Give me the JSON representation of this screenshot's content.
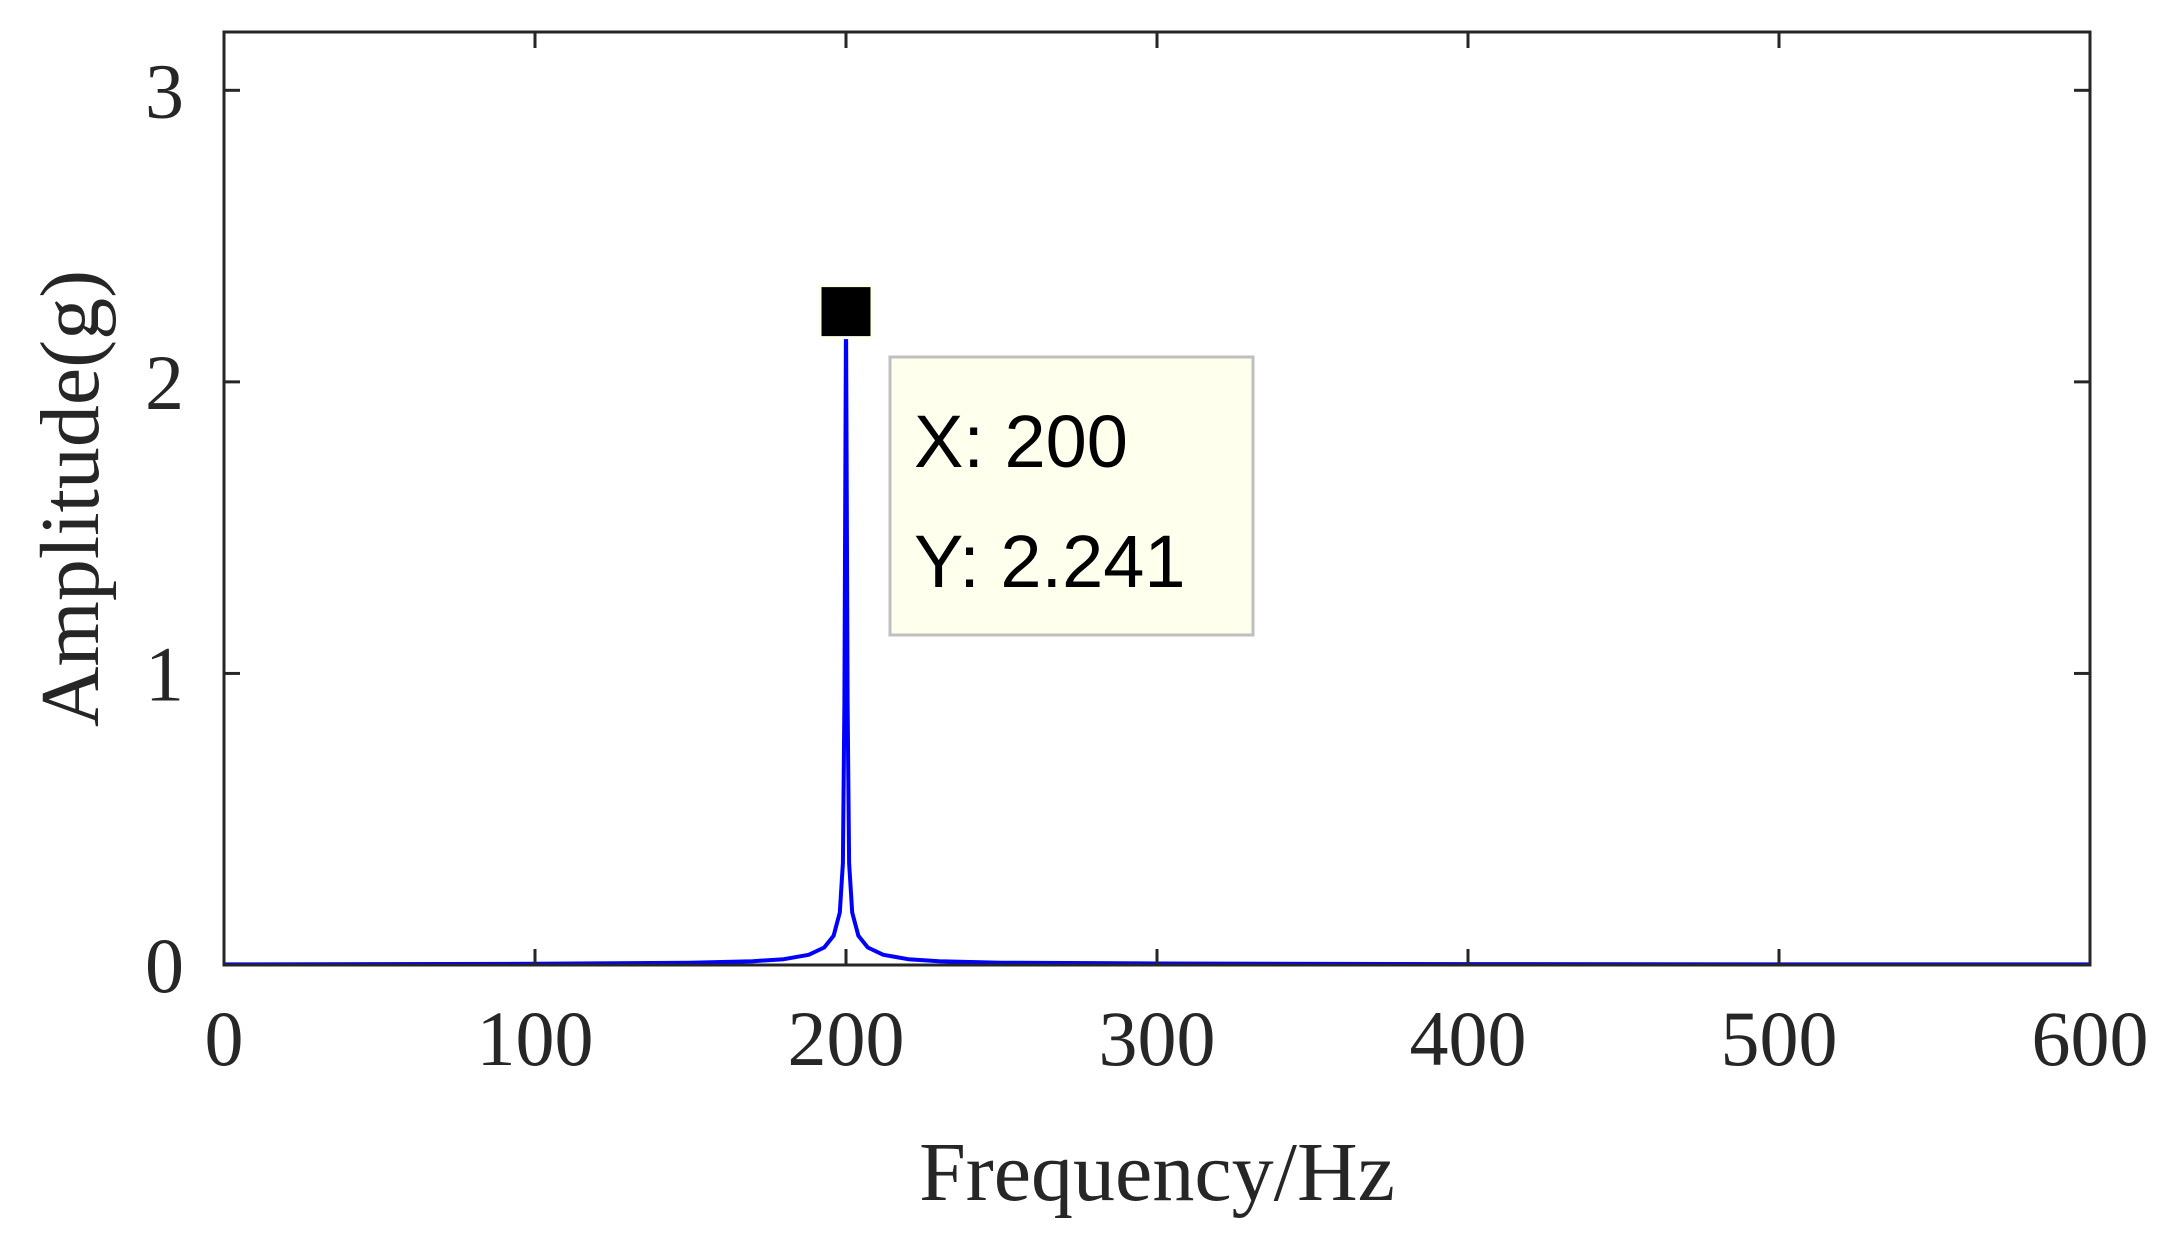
{
  "colors": {
    "series": "#0000ff",
    "axis": "#262626",
    "tooltip_bg": "#ffffee",
    "tooltip_border": "#bfbfbf",
    "marker": "#000000"
  },
  "chart_data": {
    "type": "line",
    "xlabel": "Frequency/Hz",
    "ylabel": "Amplitude(g)",
    "xlim": [
      0,
      600
    ],
    "ylim": [
      0,
      3.2
    ],
    "xticks": [
      0,
      100,
      200,
      300,
      400,
      500,
      600
    ],
    "yticks": [
      0,
      1,
      2,
      3
    ],
    "grid": false,
    "legend": "none",
    "series": [
      {
        "x": [
          0,
          50,
          100,
          150,
          170,
          180,
          188,
          193,
          196,
          198,
          199,
          199.5,
          200,
          200.5,
          201,
          202,
          204,
          207,
          212,
          220,
          230,
          250,
          300,
          400,
          500,
          600
        ],
        "y": [
          0.002,
          0.003,
          0.004,
          0.008,
          0.013,
          0.02,
          0.035,
          0.06,
          0.1,
          0.18,
          0.35,
          0.9,
          2.241,
          0.9,
          0.35,
          0.18,
          0.1,
          0.06,
          0.035,
          0.02,
          0.013,
          0.008,
          0.005,
          0.003,
          0.002,
          0.002
        ]
      }
    ],
    "datatip": {
      "x_text": "X: 200",
      "y_text": "Y: 2.241",
      "x": 200,
      "y": 2.241
    }
  }
}
